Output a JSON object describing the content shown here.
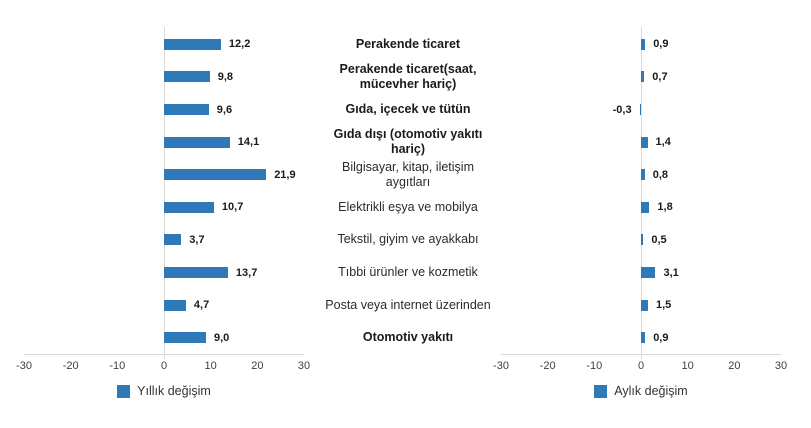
{
  "chart_data": {
    "type": "bar",
    "orientation": "horizontal",
    "decimal_separator": ",",
    "categories": [
      {
        "label": "Perakende ticaret",
        "bold": true
      },
      {
        "label": "Perakende ticaret(saat,\nmücevher hariç)",
        "bold": true
      },
      {
        "label": "Gıda, içecek ve tütün",
        "bold": true
      },
      {
        "label": "Gıda dışı (otomotiv yakıtı\nhariç)",
        "bold": true
      },
      {
        "label": "Bilgisayar, kitap, iletişim\naygıtları",
        "bold": false
      },
      {
        "label": "Elektrikli eşya ve mobilya",
        "bold": false
      },
      {
        "label": "Tekstil, giyim ve ayakkabı",
        "bold": false
      },
      {
        "label": "Tıbbi ürünler ve kozmetik",
        "bold": false
      },
      {
        "label": "Posta veya internet üzerinden",
        "bold": false
      },
      {
        "label": "Otomotiv yakıtı",
        "bold": true
      }
    ],
    "series": [
      {
        "name": "Yıllık değişim",
        "values": [
          12.2,
          9.8,
          9.6,
          14.1,
          21.9,
          10.7,
          3.7,
          13.7,
          4.7,
          9.0
        ],
        "labels": [
          "12,2",
          "9,8",
          "9,6",
          "14,1",
          "21,9",
          "10,7",
          "3,7",
          "13,7",
          "4,7",
          "9,0"
        ]
      },
      {
        "name": "Aylık değişim",
        "values": [
          0.9,
          0.7,
          -0.3,
          1.4,
          0.8,
          1.8,
          0.5,
          3.1,
          1.5,
          0.9
        ],
        "labels": [
          "0,9",
          "0,7",
          "-0,3",
          "1,4",
          "0,8",
          "1,8",
          "0,5",
          "3,1",
          "1,5",
          "0,9"
        ]
      }
    ],
    "xticks": [
      -30,
      -20,
      -10,
      0,
      10,
      20,
      30
    ],
    "xlim": [
      -30,
      30
    ],
    "bar_color": "#2E79B8",
    "axis_color": "#D9D9D9",
    "grid": false,
    "legend_position": "bottom"
  }
}
